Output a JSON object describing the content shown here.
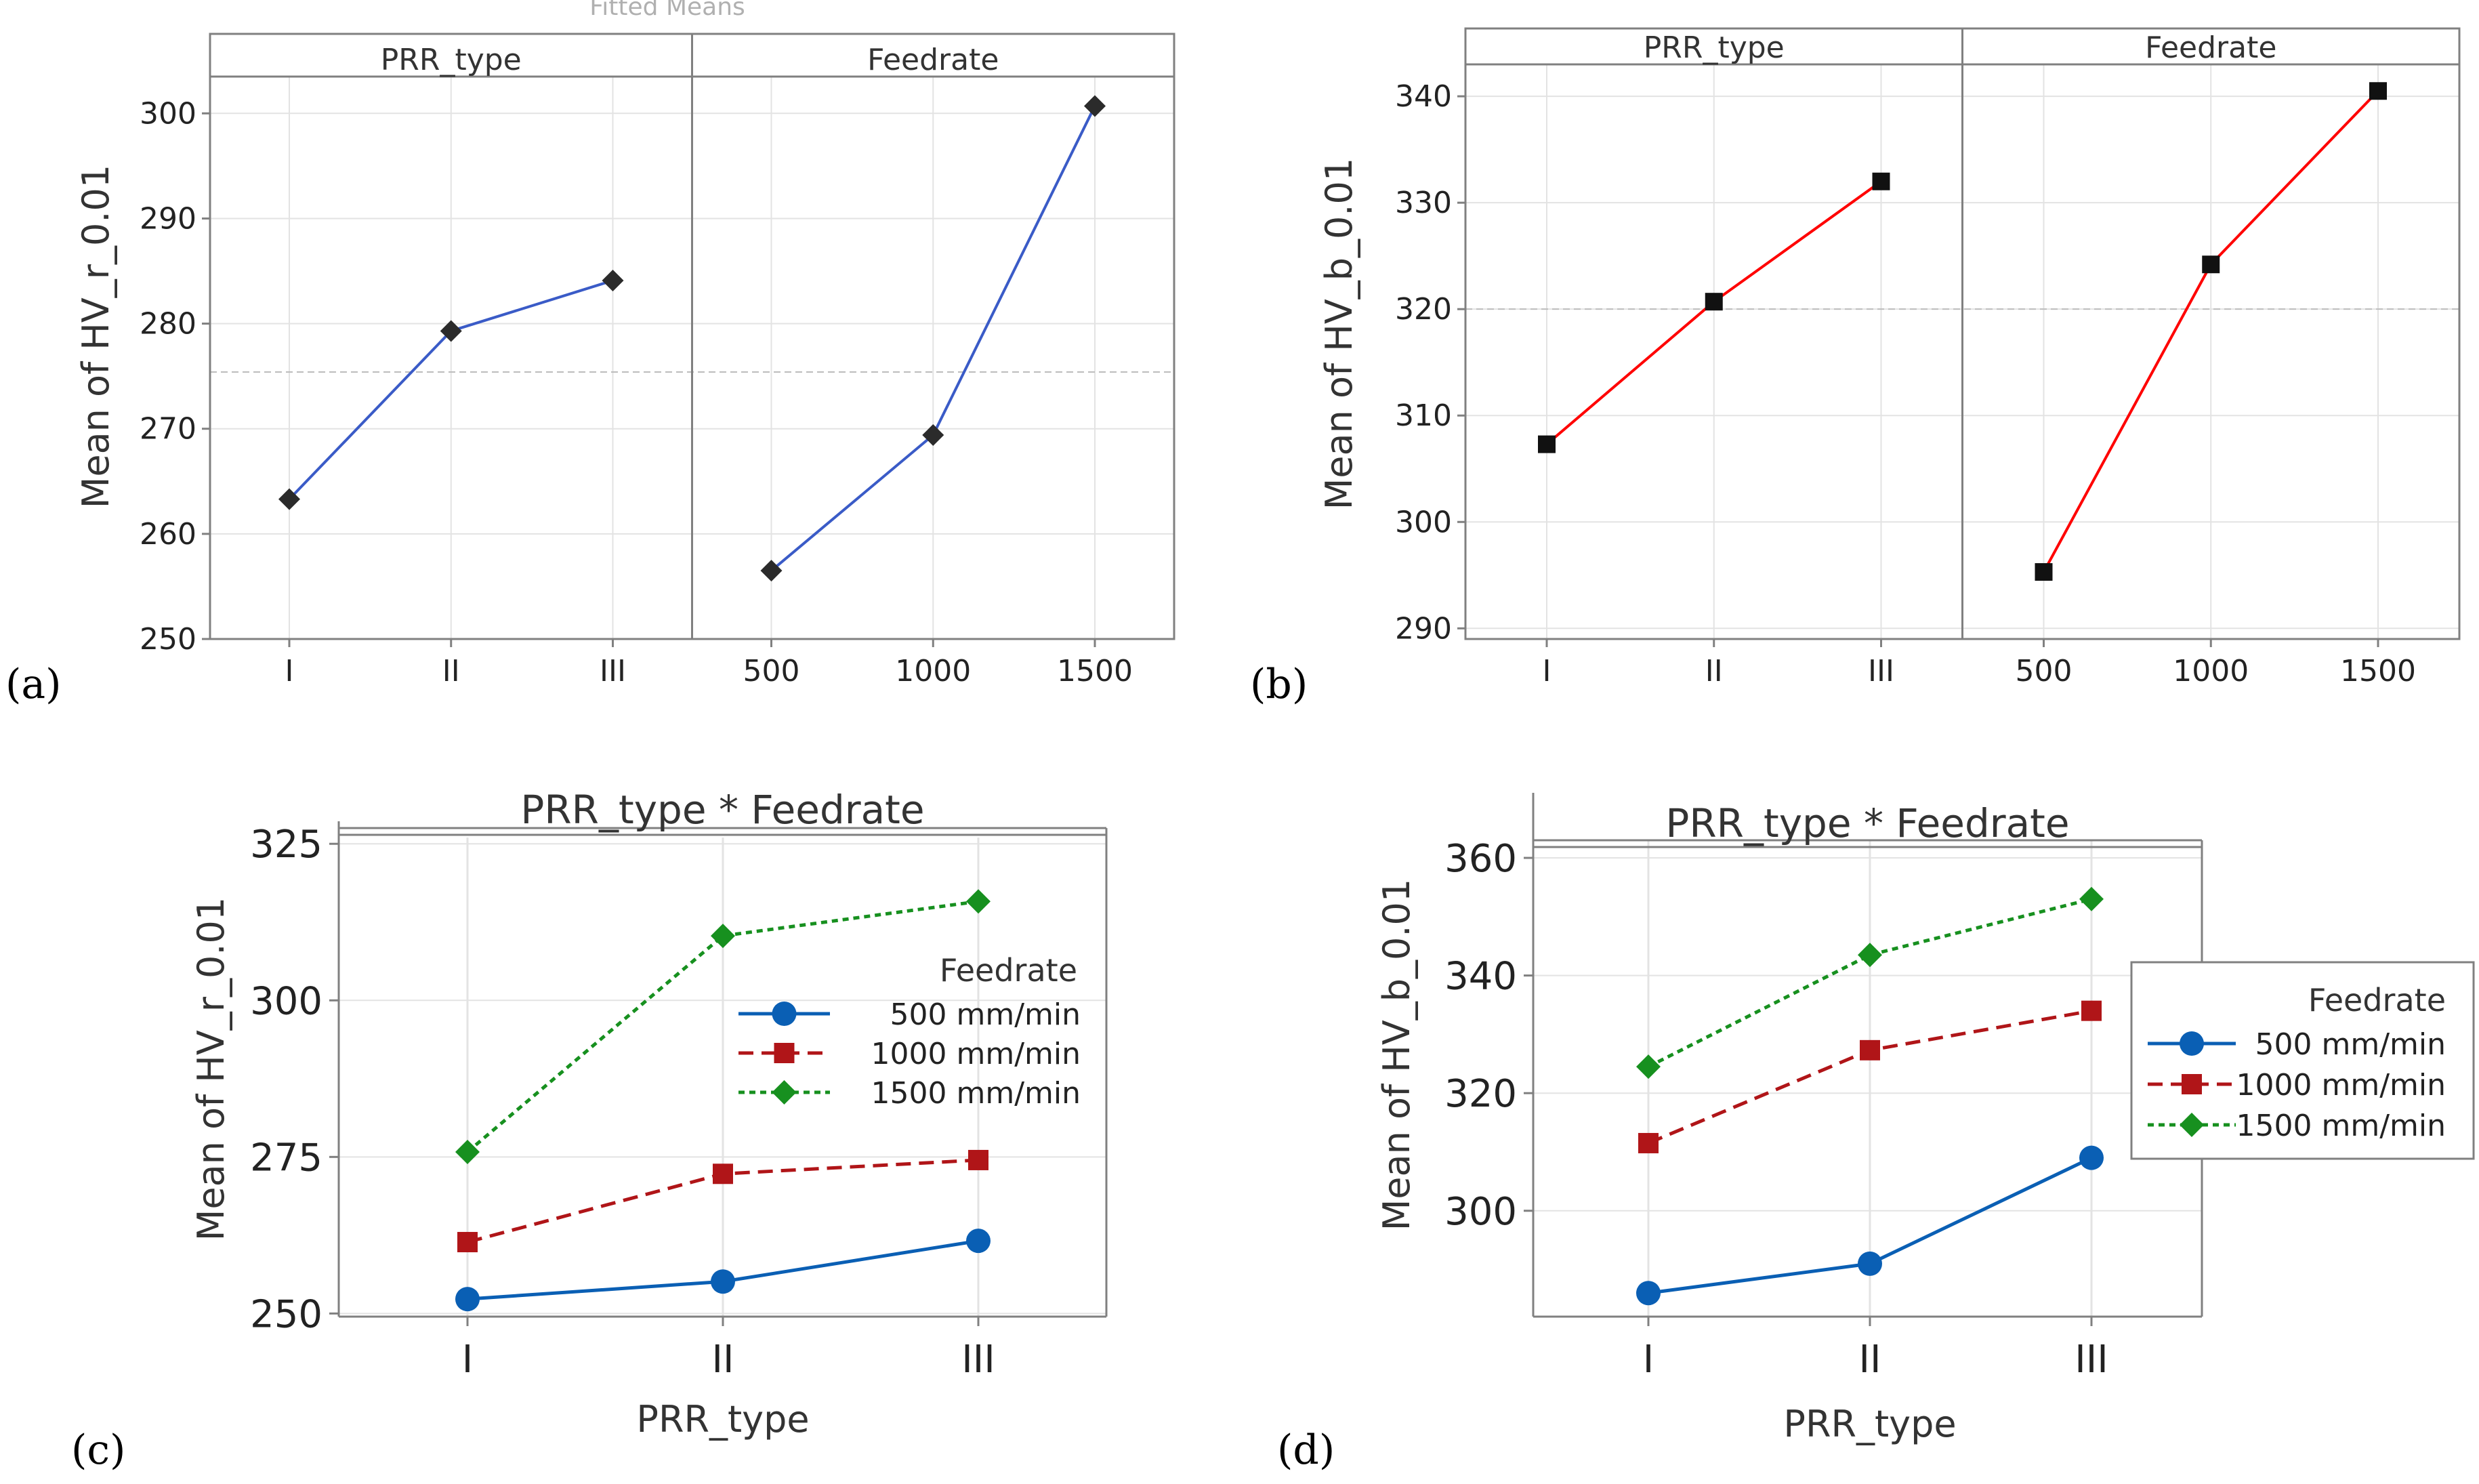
{
  "top_cut_text": "Fitted Means",
  "colors": {
    "series_500": "#0a5fb4",
    "series_1000": "#b01518",
    "series_1500": "#17901f",
    "line_a": "#3a5bc7",
    "line_b": "#ff0000",
    "marker": "#2b2b2b",
    "grid": "#e3e3e3",
    "frame": "#808080"
  },
  "chart_data": [
    {
      "id": "a",
      "panel_label": "(a)",
      "type": "line",
      "title": "",
      "ylabel": "Mean of HV_r_0.01",
      "ylim": [
        250,
        303.5
      ],
      "yticks": [
        250,
        260,
        270,
        280,
        290,
        300
      ],
      "mean_line": 275.4,
      "marker": "diamond",
      "facets": [
        {
          "strip": "PRR_type",
          "categories": [
            "I",
            "II",
            "III"
          ],
          "values": [
            263.3,
            279.3,
            284.1
          ]
        },
        {
          "strip": "Feedrate",
          "categories": [
            "500",
            "1000",
            "1500"
          ],
          "values": [
            256.5,
            269.4,
            300.7
          ]
        }
      ]
    },
    {
      "id": "b",
      "panel_label": "(b)",
      "type": "line",
      "title": "",
      "ylabel": "Mean of HV_b_0.01",
      "ylim": [
        289,
        343
      ],
      "yticks": [
        290,
        300,
        310,
        320,
        330,
        340
      ],
      "mean_line": 320,
      "marker": "square",
      "facets": [
        {
          "strip": "PRR_type",
          "categories": [
            "I",
            "II",
            "III"
          ],
          "values": [
            307.3,
            320.7,
            332.0
          ]
        },
        {
          "strip": "Feedrate",
          "categories": [
            "500",
            "1000",
            "1500"
          ],
          "values": [
            295.3,
            324.2,
            340.5
          ]
        }
      ]
    },
    {
      "id": "c",
      "panel_label": "(c)",
      "type": "line",
      "title": "PRR_type * Feedrate",
      "xlabel": "PRR_type",
      "ylabel": "Mean of HV_r_0.01",
      "ylim": [
        249.5,
        326
      ],
      "yticks": [
        250,
        275,
        300,
        325
      ],
      "categories": [
        "I",
        "II",
        "III"
      ],
      "legend_title": "Feedrate",
      "series": [
        {
          "name": "500 mm/min",
          "values": [
            252.3,
            255.1,
            261.6
          ],
          "marker": "circle",
          "dash": "solid"
        },
        {
          "name": "1000 mm/min",
          "values": [
            261.4,
            272.3,
            274.5
          ],
          "marker": "square",
          "dash": "dashed"
        },
        {
          "name": "1500 mm/min",
          "values": [
            275.8,
            310.3,
            315.8
          ],
          "marker": "diamond",
          "dash": "dotted"
        }
      ]
    },
    {
      "id": "d",
      "panel_label": "(d)",
      "type": "line",
      "title": "PRR_type * Feedrate",
      "xlabel": "PRR_type",
      "ylabel": "Mean of HV_b_0.01",
      "ylim": [
        282,
        361.5
      ],
      "yticks": [
        300,
        320,
        340,
        360
      ],
      "categories": [
        "I",
        "II",
        "III"
      ],
      "legend_title": "Feedrate",
      "series": [
        {
          "name": "500 mm/min",
          "values": [
            286.0,
            291.0,
            309.0
          ],
          "marker": "circle",
          "dash": "solid"
        },
        {
          "name": "1000 mm/min",
          "values": [
            311.5,
            327.3,
            334.0
          ],
          "marker": "square",
          "dash": "dashed"
        },
        {
          "name": "1500 mm/min",
          "values": [
            324.5,
            343.5,
            353.0
          ],
          "marker": "diamond",
          "dash": "dotted"
        }
      ]
    }
  ]
}
